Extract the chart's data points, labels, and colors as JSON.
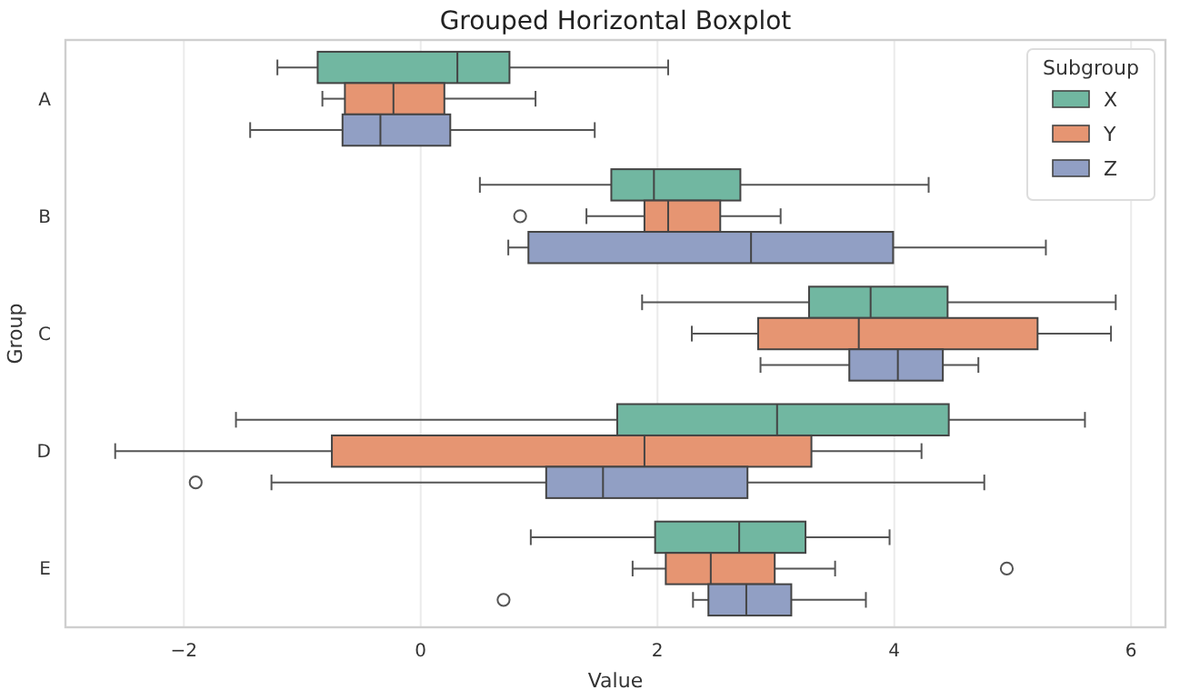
{
  "chart_data": {
    "type": "box",
    "title": "Grouped Horizontal Boxplot",
    "xlabel": "Value",
    "ylabel": "Group",
    "legend_title": "Subgroup",
    "orientation": "horizontal",
    "categories": [
      "A",
      "B",
      "C",
      "D",
      "E"
    ],
    "xlim": [
      -3.0,
      6.29
    ],
    "xticks": [
      {
        "value": -2,
        "label": "−2"
      },
      0,
      2,
      4,
      6
    ],
    "grid": "x",
    "legend": "top right",
    "series": [
      {
        "name": "X",
        "color": "#71b7a1",
        "boxes": [
          {
            "low": -1.21,
            "q1": -0.87,
            "median": 0.31,
            "q3": 0.75,
            "high": 2.09
          },
          {
            "low": 0.5,
            "q1": 1.61,
            "median": 1.97,
            "q3": 2.7,
            "high": 4.29
          },
          {
            "low": 1.87,
            "q1": 3.28,
            "median": 3.8,
            "q3": 4.45,
            "high": 5.87
          },
          {
            "low": -1.56,
            "q1": 1.66,
            "median": 3.01,
            "q3": 4.46,
            "high": 5.61
          },
          {
            "low": 0.93,
            "q1": 1.98,
            "median": 2.69,
            "q3": 3.25,
            "high": 3.96
          }
        ]
      },
      {
        "name": "Y",
        "color": "#e69572",
        "boxes": [
          {
            "low": -0.83,
            "q1": -0.64,
            "median": -0.23,
            "q3": 0.2,
            "high": 0.97
          },
          {
            "low": 1.4,
            "q1": 1.89,
            "median": 2.09,
            "q3": 2.53,
            "high": 3.04,
            "outliers": [
              0.84
            ]
          },
          {
            "low": 2.29,
            "q1": 2.85,
            "median": 3.7,
            "q3": 5.21,
            "high": 5.83
          },
          {
            "low": -2.58,
            "q1": -0.75,
            "median": 1.89,
            "q3": 3.3,
            "high": 4.23
          },
          {
            "low": 1.79,
            "q1": 2.07,
            "median": 2.45,
            "q3": 2.99,
            "high": 3.5,
            "outliers": [
              4.95
            ]
          }
        ]
      },
      {
        "name": "Z",
        "color": "#919fc4",
        "boxes": [
          {
            "low": -1.44,
            "q1": -0.66,
            "median": -0.34,
            "q3": 0.25,
            "high": 1.47
          },
          {
            "low": 0.74,
            "q1": 0.91,
            "median": 2.79,
            "q3": 3.99,
            "high": 5.28
          },
          {
            "low": 2.87,
            "q1": 3.62,
            "median": 4.03,
            "q3": 4.41,
            "high": 4.71
          },
          {
            "low": -1.26,
            "q1": 1.06,
            "median": 1.54,
            "q3": 2.76,
            "high": 4.76,
            "outliers": [
              -1.9
            ]
          },
          {
            "low": 2.3,
            "q1": 2.43,
            "median": 2.75,
            "q3": 3.13,
            "high": 3.76,
            "outliers": [
              0.7
            ]
          }
        ]
      }
    ]
  }
}
